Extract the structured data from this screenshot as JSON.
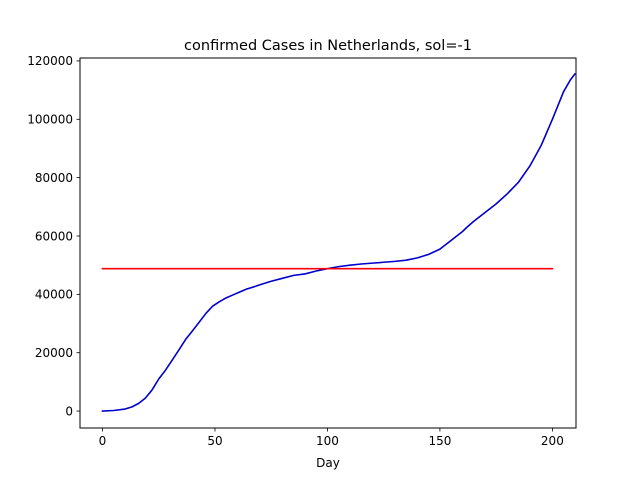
{
  "chart_data": {
    "type": "line",
    "title": "confirmed Cases in Netherlands, sol=-1",
    "xlabel": "Day",
    "ylabel": "",
    "xlim": [
      -10,
      210.5
    ],
    "ylim": [
      -5800,
      121000
    ],
    "xticks": [
      0,
      50,
      100,
      150,
      200
    ],
    "xtick_labels": [
      "0",
      "50",
      "100",
      "150",
      "200"
    ],
    "yticks": [
      0,
      20000,
      40000,
      60000,
      80000,
      100000,
      120000
    ],
    "ytick_labels": [
      "0",
      "20000",
      "40000",
      "60000",
      "80000",
      "100000",
      "120000"
    ],
    "grid": false,
    "series": [
      {
        "color": "#0000cc",
        "x": [
          0,
          5,
          10,
          13,
          16,
          19,
          22,
          25,
          28,
          31,
          34,
          37,
          40,
          43,
          46,
          49,
          52,
          55,
          58,
          61,
          64,
          67,
          70,
          75,
          80,
          85,
          90,
          95,
          100,
          105,
          110,
          115,
          120,
          125,
          130,
          135,
          140,
          145,
          150,
          155,
          160,
          162,
          165,
          170,
          175,
          180,
          185,
          190,
          195,
          200,
          205,
          208,
          210
        ],
        "y": [
          0,
          200,
          700,
          1400,
          2600,
          4400,
          7200,
          11000,
          14000,
          17500,
          21000,
          24600,
          27500,
          30500,
          33500,
          36000,
          37500,
          38800,
          39800,
          40800,
          41800,
          42500,
          43300,
          44500,
          45500,
          46500,
          47000,
          48000,
          48800,
          49500,
          50000,
          50400,
          50700,
          51000,
          51300,
          51700,
          52500,
          53700,
          55500,
          58500,
          61500,
          63000,
          65000,
          68000,
          71000,
          74500,
          78500,
          84000,
          91000,
          100000,
          109500,
          113500,
          115500
        ]
      },
      {
        "color": "#ff0000",
        "x": [
          0,
          200
        ],
        "y": [
          48800,
          48800
        ]
      }
    ]
  }
}
